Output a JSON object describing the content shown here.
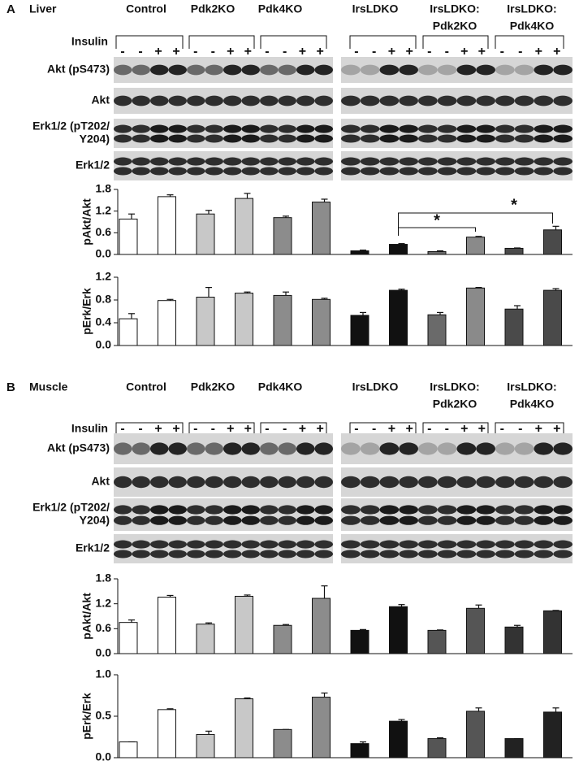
{
  "panels": [
    {
      "letter": "A",
      "tissue": "Liver",
      "groups": [
        [
          "Control"
        ],
        [
          "Pdk2KO"
        ],
        [
          "Pdk4KO"
        ],
        [
          "IrsLDKO"
        ],
        [
          "IrsLDKO:",
          "Pdk2KO"
        ],
        [
          "IrsLDKO:",
          "Pdk4KO"
        ]
      ],
      "insulin_label": "Insulin",
      "signs": [
        "-",
        "-",
        "+",
        "+",
        "-",
        "-",
        "+",
        "+",
        "-",
        "-",
        "+",
        "+",
        "-",
        "-",
        "+",
        "+",
        "-",
        "-",
        "+",
        "+",
        "-",
        "-",
        "+",
        "+"
      ],
      "blots": [
        [
          "Akt (pS473)"
        ],
        [
          "Akt"
        ],
        [
          "Erk1/2 (pT202/",
          "Y204)"
        ],
        [
          "Erk1/2"
        ]
      ]
    },
    {
      "letter": "B",
      "tissue": "Muscle",
      "groups": [
        [
          "Control"
        ],
        [
          "Pdk2KO"
        ],
        [
          "Pdk4KO"
        ],
        [
          "IrsLDKO"
        ],
        [
          "IrsLDKO:",
          "Pdk2KO"
        ],
        [
          "IrsLDKO:",
          "Pdk4KO"
        ]
      ],
      "insulin_label": "Insulin",
      "signs": [
        "-",
        "-",
        "+",
        "+",
        "-",
        "-",
        "+",
        "+",
        "-",
        "-",
        "+",
        "+",
        "-",
        "-",
        "+",
        "+",
        "-",
        "-",
        "+",
        "+",
        "-",
        "-",
        "+",
        "+"
      ],
      "blots": [
        [
          "Akt (pS473)"
        ],
        [
          "Akt"
        ],
        [
          "Erk1/2 (pT202/",
          "Y204)"
        ],
        [
          "Erk1/2"
        ]
      ]
    }
  ],
  "chart_data": [
    {
      "type": "bar",
      "ylabel": "pAkt/Akt",
      "values": [
        0.98,
        1.6,
        1.12,
        1.55,
        1.02,
        1.45,
        0.1,
        0.28,
        0.08,
        0.48,
        0.17,
        0.68
      ],
      "errors": [
        0.14,
        0.05,
        0.1,
        0.14,
        0.04,
        0.08,
        0.02,
        0.02,
        0.02,
        0.02,
        0.01,
        0.1
      ],
      "colors": [
        "#ffffff",
        "#ffffff",
        "#c8c8c8",
        "#c8c8c8",
        "#8c8c8c",
        "#8c8c8c",
        "#111111",
        "#111111",
        "#6a6a6a",
        "#8a8a8a",
        "#4a4a4a",
        "#4a4a4a"
      ],
      "ylim": [
        0,
        1.8
      ],
      "yticks": [
        {
          "value": 0,
          "label": "0.0"
        },
        0.6,
        1.2,
        1.8
      ],
      "annotations": [
        "*",
        "*"
      ]
    },
    {
      "type": "bar",
      "ylabel": "pErk/Erk",
      "values": [
        0.47,
        0.79,
        0.85,
        0.92,
        0.88,
        0.81,
        0.53,
        0.97,
        0.54,
        1.01,
        0.64,
        0.97
      ],
      "errors": [
        0.09,
        0.02,
        0.17,
        0.02,
        0.06,
        0.02,
        0.05,
        0.02,
        0.04,
        0.01,
        0.06,
        0.03
      ],
      "colors": [
        "#ffffff",
        "#ffffff",
        "#c8c8c8",
        "#c8c8c8",
        "#8c8c8c",
        "#8c8c8c",
        "#111111",
        "#111111",
        "#6a6a6a",
        "#8a8a8a",
        "#4a4a4a",
        "#4a4a4a"
      ],
      "ylim": [
        0,
        1.2
      ],
      "yticks": [
        {
          "value": 0,
          "label": "0.0"
        },
        0.4,
        0.8,
        1.2
      ]
    },
    {
      "type": "bar",
      "ylabel": "pAkt/Akt",
      "values": [
        0.75,
        1.36,
        0.71,
        1.38,
        0.68,
        1.33,
        0.56,
        1.13,
        0.56,
        1.09,
        0.64,
        1.03
      ],
      "errors": [
        0.06,
        0.04,
        0.03,
        0.03,
        0.02,
        0.3,
        0.02,
        0.05,
        0.01,
        0.08,
        0.04,
        0.01
      ],
      "colors": [
        "#ffffff",
        "#ffffff",
        "#c8c8c8",
        "#c8c8c8",
        "#8c8c8c",
        "#8c8c8c",
        "#111111",
        "#111111",
        "#555555",
        "#555555",
        "#333333",
        "#333333"
      ],
      "ylim": [
        0,
        1.8
      ],
      "yticks": [
        {
          "value": 0,
          "label": "0.0"
        },
        0.6,
        1.2,
        1.8
      ]
    },
    {
      "type": "bar",
      "ylabel": "pErk/Erk",
      "values": [
        0.19,
        0.58,
        0.28,
        0.71,
        0.34,
        0.73,
        0.17,
        0.44,
        0.23,
        0.56,
        0.23,
        0.55
      ],
      "errors": [
        0,
        0.01,
        0.04,
        0.01,
        0,
        0.05,
        0.02,
        0.02,
        0.01,
        0.04,
        0,
        0.05
      ],
      "colors": [
        "#ffffff",
        "#ffffff",
        "#c8c8c8",
        "#c8c8c8",
        "#8c8c8c",
        "#8c8c8c",
        "#111111",
        "#111111",
        "#555555",
        "#555555",
        "#222222",
        "#222222"
      ],
      "ylim": [
        0,
        1.0
      ],
      "yticks": [
        {
          "value": 0,
          "label": "0.0"
        },
        0.5,
        {
          "value": 1.0,
          "label": "1.0"
        }
      ]
    }
  ]
}
